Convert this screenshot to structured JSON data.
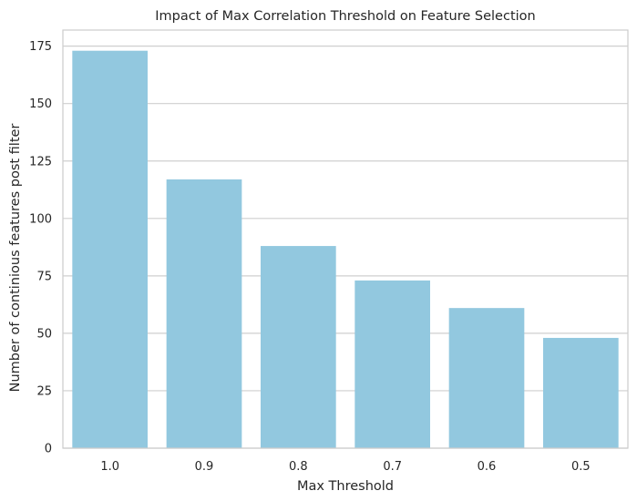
{
  "chart_data": {
    "type": "bar",
    "title": "Impact of Max Correlation Threshold on Feature Selection",
    "xlabel": "Max Threshold",
    "ylabel": "Number of continious features post filter",
    "categories": [
      "1.0",
      "0.9",
      "0.8",
      "0.7",
      "0.6",
      "0.5"
    ],
    "values": [
      173,
      117,
      88,
      73,
      61,
      48
    ],
    "ylim": [
      0,
      182
    ],
    "yticks": [
      0,
      25,
      50,
      75,
      100,
      125,
      150,
      175
    ],
    "grid": "horizontal",
    "bar_color": "#92c8df",
    "grid_color": "#cfcfcf",
    "axes_color": "#cccccc"
  }
}
